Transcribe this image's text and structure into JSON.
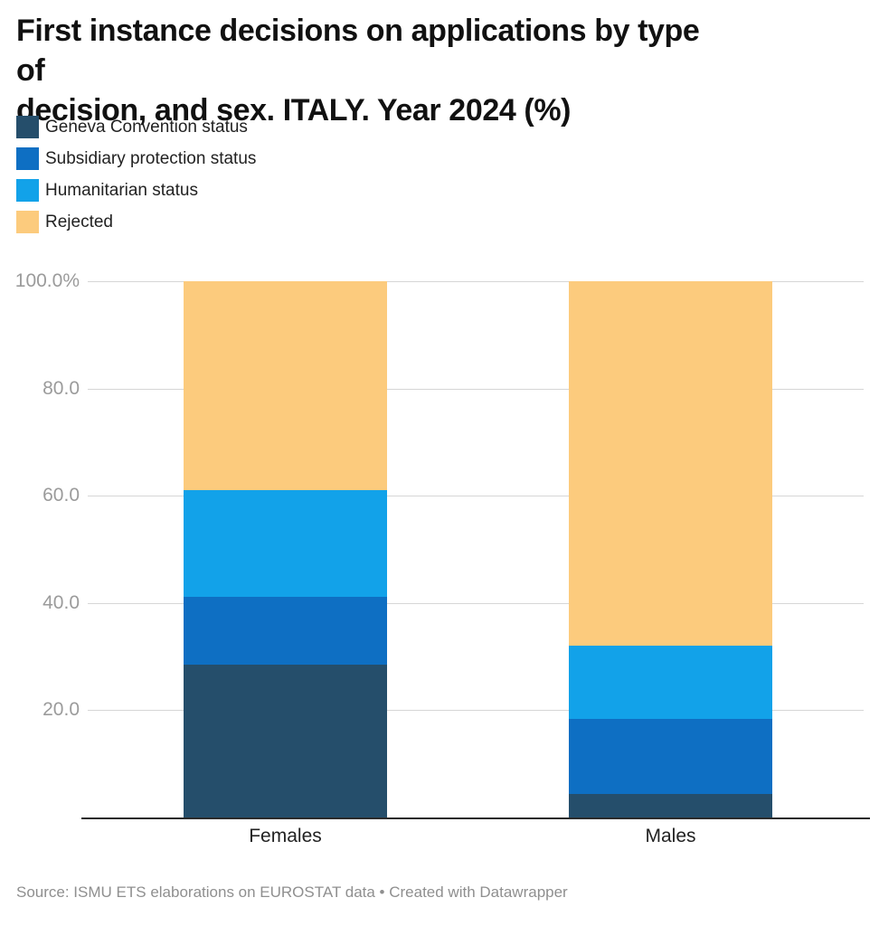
{
  "header": {
    "title_line1": "First instance decisions on applications by type of",
    "title_line2": "decision, and sex. ITALY. Year 2024 (%)"
  },
  "chart_data": {
    "type": "bar",
    "stacked": true,
    "unit": "%",
    "title": "First instance decisions on applications by type of decision, and sex. ITALY. Year 2024 (%)",
    "categories": [
      "Females",
      "Males"
    ],
    "series": [
      {
        "name": "Geneva Convention status",
        "color": "#254e6b",
        "values": [
          28.5,
          4.3
        ]
      },
      {
        "name": "Subsidiary protection status",
        "color": "#0e6fc3",
        "values": [
          12.7,
          14.0
        ]
      },
      {
        "name": "Humanitarian status",
        "color": "#12a2e9",
        "values": [
          19.8,
          13.7
        ]
      },
      {
        "name": "Rejected",
        "color": "#fccb7d",
        "values": [
          39.0,
          68.0
        ]
      }
    ],
    "xlabel": "",
    "ylabel": "",
    "ylim": [
      0,
      100
    ],
    "yticks": [
      {
        "value": 20,
        "label": "20.0"
      },
      {
        "value": 40,
        "label": "40.0"
      },
      {
        "value": 60,
        "label": "60.0"
      },
      {
        "value": 80,
        "label": "80.0"
      },
      {
        "value": 100,
        "label": "100.0%"
      }
    ],
    "grid": true,
    "legend_position": "top-left"
  },
  "footer": {
    "text": "Source: ISMU ETS elaborations on EUROSTAT data • Created with Datawrapper"
  }
}
